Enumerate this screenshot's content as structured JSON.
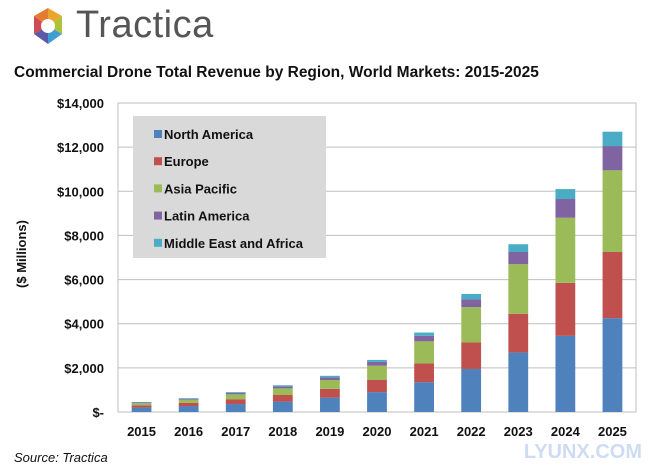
{
  "brand": {
    "name": "Tractica",
    "logo_icon": "tractica-logo-icon"
  },
  "watermark": "LYUNX.COM",
  "chart_data": {
    "type": "bar",
    "stacked": true,
    "title": "Commercial Drone Total Revenue by Region, World Markets: 2015-2025",
    "xlabel": "",
    "ylabel": "($ Millions)",
    "ylim": [
      0,
      14000
    ],
    "y_ticks": [
      0,
      2000,
      4000,
      6000,
      8000,
      10000,
      12000,
      14000
    ],
    "y_tick_labels": [
      "$-",
      "$2,000",
      "$4,000",
      "$6,000",
      "$8,000",
      "$10,000",
      "$12,000",
      "$14,000"
    ],
    "categories": [
      "2015",
      "2016",
      "2017",
      "2018",
      "2019",
      "2020",
      "2021",
      "2022",
      "2023",
      "2024",
      "2025"
    ],
    "series": [
      {
        "name": "North America",
        "color": "#4f81bd",
        "values": [
          200,
          270,
          360,
          470,
          650,
          900,
          1350,
          1950,
          2700,
          3450,
          4250
        ]
      },
      {
        "name": "Europe",
        "color": "#c0504d",
        "values": [
          100,
          150,
          220,
          300,
          400,
          550,
          850,
          1200,
          1750,
          2400,
          3000
        ]
      },
      {
        "name": "Asia Pacific",
        "color": "#9bbb59",
        "values": [
          100,
          140,
          220,
          300,
          400,
          650,
          1000,
          1600,
          2250,
          2950,
          3700
        ]
      },
      {
        "name": "Latin America",
        "color": "#8064a2",
        "values": [
          30,
          40,
          60,
          90,
          120,
          170,
          250,
          350,
          550,
          850,
          1100
        ]
      },
      {
        "name": "Middle East and Africa",
        "color": "#4bacc6",
        "values": [
          20,
          30,
          40,
          50,
          70,
          90,
          150,
          250,
          350,
          450,
          650
        ]
      }
    ],
    "legend_position": "top-left",
    "source": "Source: Tractica"
  }
}
